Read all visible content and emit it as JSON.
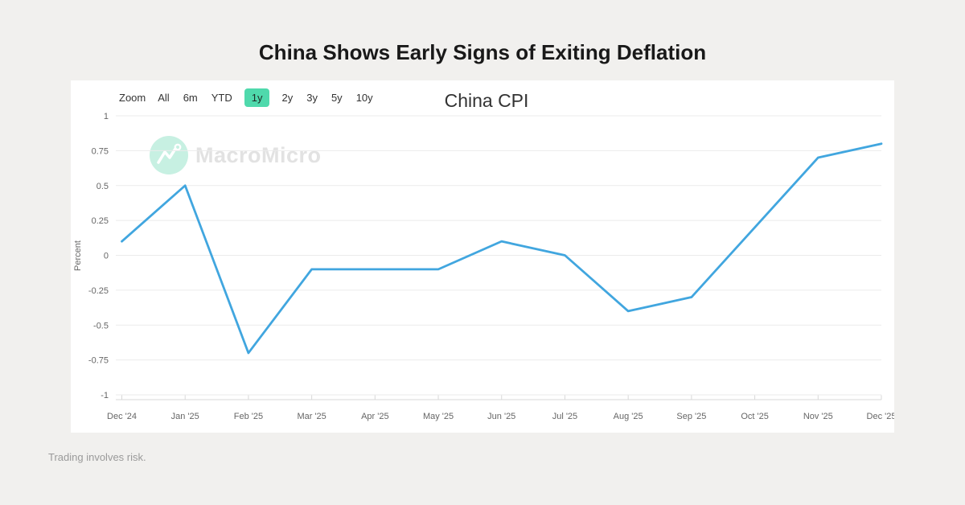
{
  "page": {
    "title": "China Shows Early Signs of Exiting Deflation",
    "background_color": "#f1f0ee"
  },
  "toolbar": {
    "zoom_label": "Zoom",
    "buttons": [
      {
        "label": "All",
        "selected": false
      },
      {
        "label": "6m",
        "selected": false
      },
      {
        "label": "YTD",
        "selected": false
      },
      {
        "label": "1y",
        "selected": true
      },
      {
        "label": "2y",
        "selected": false
      },
      {
        "label": "3y",
        "selected": false
      },
      {
        "label": "5y",
        "selected": false
      },
      {
        "label": "10y",
        "selected": false
      }
    ],
    "selected_color": "#4fd9ac"
  },
  "watermark": {
    "label": "MacroMicro",
    "logo_icon": "macromicro-mountains-icon",
    "logo_color": "#c7f0e2"
  },
  "chart_data": {
    "type": "line",
    "title": "China CPI",
    "xlabel": "",
    "ylabel": "Percent",
    "x": [
      "Dec '24",
      "Jan '25",
      "Feb '25",
      "Mar '25",
      "Apr '25",
      "May '25",
      "Jun '25",
      "Jul '25",
      "Aug '25",
      "Sep '25",
      "Oct '25",
      "Nov '25",
      "Dec '25"
    ],
    "series": [
      {
        "name": "China CPI",
        "values": [
          0.1,
          0.5,
          -0.7,
          -0.1,
          -0.1,
          -0.1,
          0.1,
          0.0,
          -0.4,
          -0.3,
          0.2,
          0.7,
          0.8
        ]
      }
    ],
    "ylim": [
      -1,
      1
    ],
    "yticks": [
      1,
      0.75,
      0.5,
      0.25,
      0,
      -0.25,
      -0.5,
      -0.75,
      -1
    ],
    "grid": true,
    "legend": "none",
    "line_color": "#41a6df",
    "grid_color": "#ebebeb",
    "axis_color": "#d8d8d8",
    "label_color": "#666666"
  },
  "footer": {
    "disclaimer": "Trading involves risk."
  }
}
